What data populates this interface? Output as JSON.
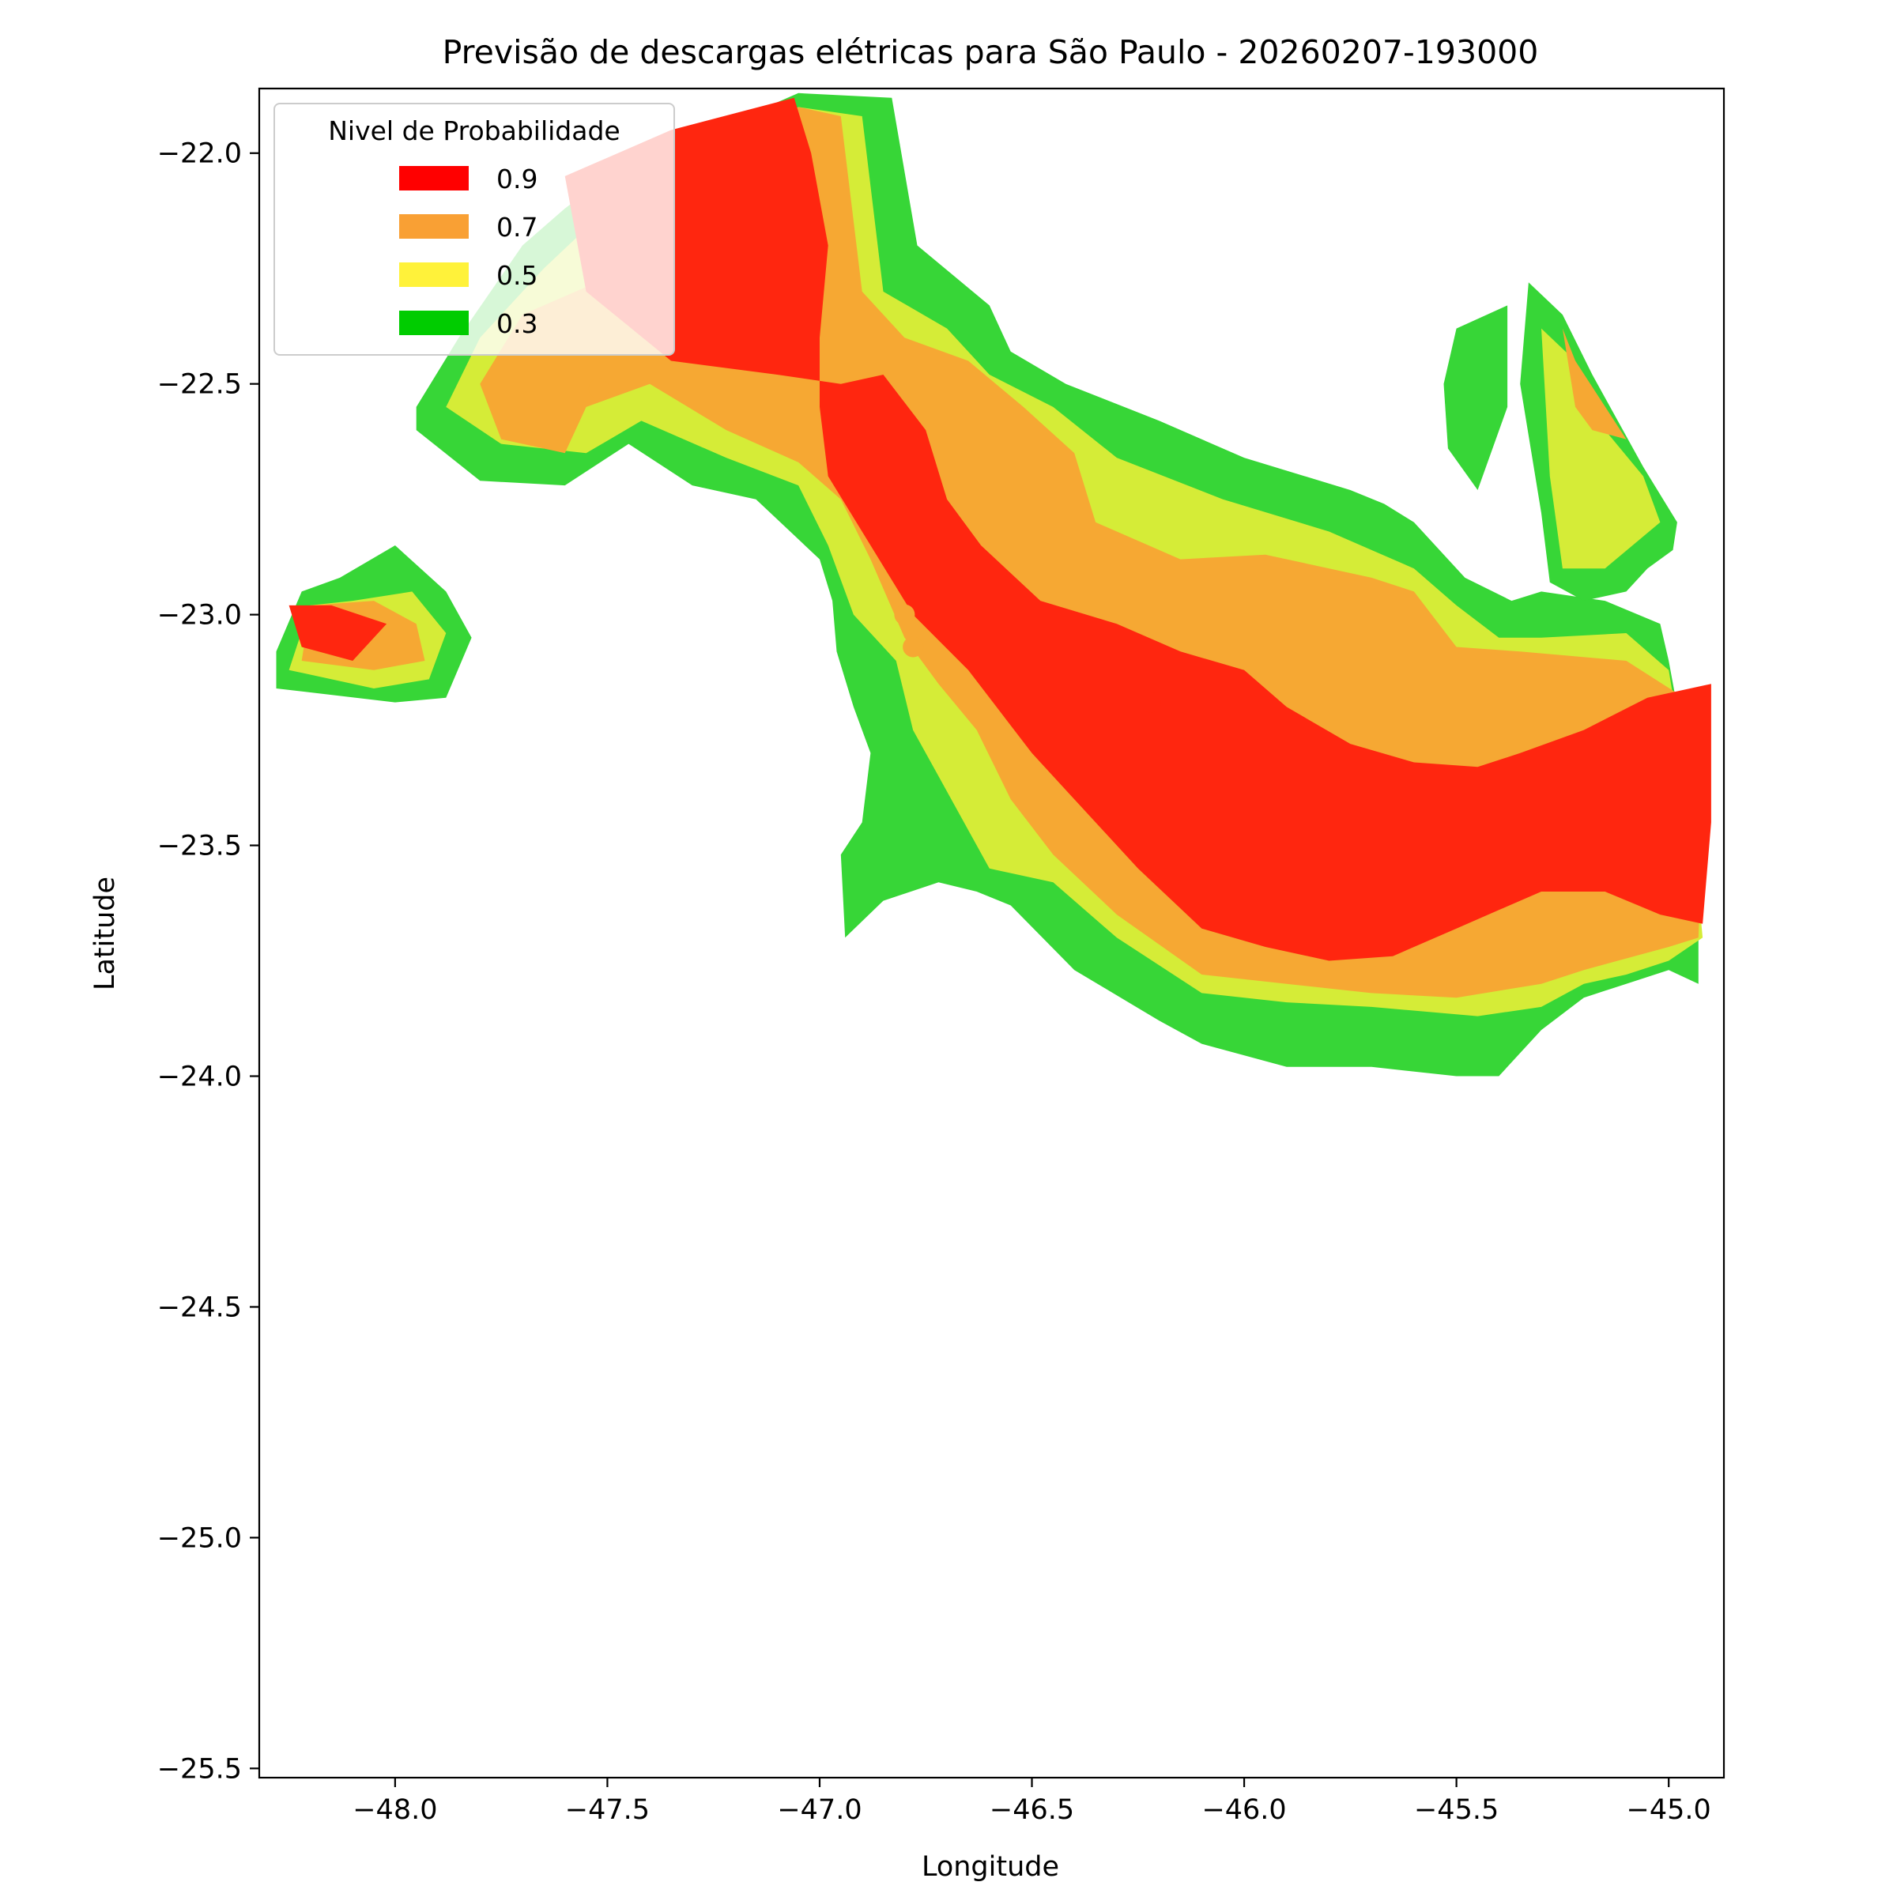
{
  "chart_data": {
    "type": "heatmap",
    "title": "Previsão de descargas elétricas para São Paulo - 20260207-193000",
    "xlabel": "Longitude",
    "ylabel": "Latitude",
    "xlim": [
      -48.32,
      -44.87
    ],
    "ylim": [
      -25.52,
      -21.86
    ],
    "xticks": [
      -48.0,
      -47.5,
      -47.0,
      -46.5,
      -46.0,
      -45.5,
      -45.0
    ],
    "yticks": [
      -22.0,
      -22.5,
      -23.0,
      -23.5,
      -24.0,
      -24.5,
      -25.0,
      -25.5
    ],
    "xtick_labels": [
      "−48.0",
      "−47.5",
      "−47.0",
      "−46.5",
      "−46.0",
      "−45.5",
      "−45.0"
    ],
    "ytick_labels": [
      "−22.0",
      "−22.5",
      "−23.0",
      "−23.5",
      "−24.0",
      "−24.5",
      "−25.0",
      "−25.5"
    ],
    "grid": false,
    "legend": {
      "title": "Nivel de Probabilidade",
      "placement": "top-left",
      "entries": [
        {
          "label": "0.9",
          "color": "#ff0000"
        },
        {
          "label": "0.7",
          "color": "#f9a034"
        },
        {
          "label": "0.5",
          "color": "#fff23a"
        },
        {
          "label": "0.3",
          "color": "#00cc00"
        }
      ]
    },
    "fill_colors": {
      "0.9": "#ff260f",
      "0.7": "#f6a833",
      "0.5": "#d5ec37",
      "0.3": "#37d637"
    },
    "regions": [
      {
        "level": 0.3,
        "polygons": [
          [
            [
              -47.5,
              -22.05
            ],
            [
              -47.05,
              -21.87
            ],
            [
              -46.83,
              -21.88
            ],
            [
              -46.77,
              -22.2
            ],
            [
              -46.6,
              -22.33
            ],
            [
              -46.55,
              -22.43
            ],
            [
              -46.42,
              -22.5
            ],
            [
              -46.2,
              -22.58
            ],
            [
              -46.0,
              -22.66
            ],
            [
              -45.75,
              -22.73
            ],
            [
              -45.67,
              -22.76
            ],
            [
              -45.6,
              -22.8
            ],
            [
              -45.48,
              -22.92
            ],
            [
              -45.37,
              -22.97
            ],
            [
              -45.3,
              -22.95
            ],
            [
              -45.15,
              -22.97
            ],
            [
              -45.02,
              -23.02
            ],
            [
              -45.0,
              -23.1
            ],
            [
              -44.96,
              -23.3
            ],
            [
              -44.92,
              -23.5
            ],
            [
              -44.93,
              -23.65
            ],
            [
              -44.93,
              -23.8
            ],
            [
              -45.0,
              -23.77
            ],
            [
              -45.1,
              -23.8
            ],
            [
              -45.2,
              -23.83
            ],
            [
              -45.3,
              -23.9
            ],
            [
              -45.4,
              -24.0
            ],
            [
              -45.5,
              -24.0
            ],
            [
              -45.7,
              -23.98
            ],
            [
              -45.9,
              -23.98
            ],
            [
              -46.1,
              -23.93
            ],
            [
              -46.2,
              -23.88
            ],
            [
              -46.4,
              -23.77
            ],
            [
              -46.55,
              -23.63
            ],
            [
              -46.63,
              -23.6
            ],
            [
              -46.72,
              -23.58
            ],
            [
              -46.85,
              -23.62
            ],
            [
              -46.94,
              -23.7
            ],
            [
              -46.95,
              -23.52
            ],
            [
              -46.9,
              -23.45
            ],
            [
              -46.88,
              -23.3
            ],
            [
              -46.92,
              -23.2
            ],
            [
              -46.96,
              -23.08
            ],
            [
              -46.97,
              -22.97
            ],
            [
              -47.0,
              -22.88
            ],
            [
              -47.15,
              -22.75
            ],
            [
              -47.3,
              -22.72
            ],
            [
              -47.45,
              -22.63
            ],
            [
              -47.6,
              -22.72
            ],
            [
              -47.8,
              -22.71
            ],
            [
              -47.95,
              -22.6
            ],
            [
              -47.95,
              -22.55
            ],
            [
              -47.85,
              -22.4
            ],
            [
              -47.7,
              -22.2
            ],
            [
              -47.6,
              -22.12
            ]
          ],
          [
            [
              -48.13,
              -22.92
            ],
            [
              -48.0,
              -22.85
            ],
            [
              -47.88,
              -22.95
            ],
            [
              -47.82,
              -23.05
            ],
            [
              -47.88,
              -23.18
            ],
            [
              -48.0,
              -23.19
            ],
            [
              -48.28,
              -23.16
            ],
            [
              -48.28,
              -23.08
            ],
            [
              -48.22,
              -22.95
            ]
          ],
          [
            [
              -45.5,
              -22.38
            ],
            [
              -45.38,
              -22.33
            ],
            [
              -45.38,
              -22.55
            ],
            [
              -45.45,
              -22.73
            ],
            [
              -45.52,
              -22.64
            ],
            [
              -45.53,
              -22.5
            ]
          ],
          [
            [
              -45.33,
              -22.28
            ],
            [
              -45.25,
              -22.35
            ],
            [
              -45.18,
              -22.48
            ],
            [
              -45.06,
              -22.68
            ],
            [
              -44.98,
              -22.8
            ],
            [
              -44.99,
              -22.86
            ],
            [
              -45.05,
              -22.9
            ],
            [
              -45.1,
              -22.95
            ],
            [
              -45.2,
              -22.97
            ],
            [
              -45.28,
              -22.93
            ],
            [
              -45.3,
              -22.78
            ],
            [
              -45.35,
              -22.5
            ]
          ]
        ]
      },
      {
        "level": 0.5,
        "polygons": [
          [
            [
              -47.4,
              -22.05
            ],
            [
              -47.05,
              -21.9
            ],
            [
              -46.9,
              -21.92
            ],
            [
              -46.85,
              -22.3
            ],
            [
              -46.7,
              -22.38
            ],
            [
              -46.6,
              -22.48
            ],
            [
              -46.45,
              -22.55
            ],
            [
              -46.3,
              -22.66
            ],
            [
              -46.05,
              -22.75
            ],
            [
              -45.8,
              -22.82
            ],
            [
              -45.7,
              -22.86
            ],
            [
              -45.6,
              -22.9
            ],
            [
              -45.5,
              -22.98
            ],
            [
              -45.4,
              -23.05
            ],
            [
              -45.3,
              -23.05
            ],
            [
              -45.1,
              -23.04
            ],
            [
              -45.0,
              -23.12
            ],
            [
              -44.95,
              -23.4
            ],
            [
              -44.92,
              -23.7
            ],
            [
              -45.0,
              -23.75
            ],
            [
              -45.1,
              -23.78
            ],
            [
              -45.2,
              -23.8
            ],
            [
              -45.3,
              -23.85
            ],
            [
              -45.45,
              -23.87
            ],
            [
              -45.7,
              -23.85
            ],
            [
              -45.9,
              -23.84
            ],
            [
              -46.1,
              -23.82
            ],
            [
              -46.3,
              -23.7
            ],
            [
              -46.45,
              -23.58
            ],
            [
              -46.6,
              -23.55
            ],
            [
              -46.72,
              -23.35
            ],
            [
              -46.78,
              -23.25
            ],
            [
              -46.82,
              -23.1
            ],
            [
              -46.92,
              -23.0
            ],
            [
              -46.98,
              -22.85
            ],
            [
              -47.05,
              -22.72
            ],
            [
              -47.22,
              -22.66
            ],
            [
              -47.42,
              -22.58
            ],
            [
              -47.55,
              -22.65
            ],
            [
              -47.75,
              -22.63
            ],
            [
              -47.88,
              -22.55
            ],
            [
              -47.8,
              -22.4
            ],
            [
              -47.65,
              -22.25
            ],
            [
              -47.5,
              -22.12
            ]
          ],
          [
            [
              -48.1,
              -22.97
            ],
            [
              -47.96,
              -22.95
            ],
            [
              -47.88,
              -23.04
            ],
            [
              -47.92,
              -23.14
            ],
            [
              -48.05,
              -23.16
            ],
            [
              -48.25,
              -23.12
            ],
            [
              -48.2,
              -22.98
            ]
          ],
          [
            [
              -45.3,
              -22.38
            ],
            [
              -45.22,
              -22.45
            ],
            [
              -45.15,
              -22.6
            ],
            [
              -45.06,
              -22.7
            ],
            [
              -45.02,
              -22.8
            ],
            [
              -45.15,
              -22.9
            ],
            [
              -45.25,
              -22.9
            ],
            [
              -45.28,
              -22.7
            ]
          ]
        ]
      },
      {
        "level": 0.7,
        "polygons": [
          [
            [
              -47.05,
              -21.9
            ],
            [
              -46.95,
              -21.92
            ],
            [
              -46.9,
              -22.3
            ],
            [
              -46.8,
              -22.4
            ],
            [
              -46.65,
              -22.45
            ],
            [
              -46.52,
              -22.55
            ],
            [
              -46.4,
              -22.65
            ],
            [
              -46.35,
              -22.8
            ],
            [
              -46.15,
              -22.88
            ],
            [
              -45.95,
              -22.87
            ],
            [
              -45.7,
              -22.92
            ],
            [
              -45.6,
              -22.95
            ],
            [
              -45.5,
              -23.07
            ],
            [
              -45.35,
              -23.08
            ],
            [
              -45.1,
              -23.1
            ],
            [
              -44.93,
              -23.2
            ],
            [
              -44.92,
              -23.45
            ],
            [
              -44.93,
              -23.7
            ],
            [
              -45.0,
              -23.72
            ],
            [
              -45.2,
              -23.77
            ],
            [
              -45.3,
              -23.8
            ],
            [
              -45.5,
              -23.83
            ],
            [
              -45.7,
              -23.82
            ],
            [
              -45.9,
              -23.8
            ],
            [
              -46.1,
              -23.78
            ],
            [
              -46.3,
              -23.65
            ],
            [
              -46.45,
              -23.52
            ],
            [
              -46.55,
              -23.4
            ],
            [
              -46.63,
              -23.25
            ],
            [
              -46.72,
              -23.15
            ],
            [
              -46.8,
              -23.05
            ],
            [
              -46.88,
              -22.88
            ],
            [
              -46.95,
              -22.75
            ],
            [
              -47.05,
              -22.67
            ],
            [
              -47.22,
              -22.6
            ],
            [
              -47.4,
              -22.5
            ],
            [
              -47.55,
              -22.55
            ],
            [
              -47.6,
              -22.65
            ],
            [
              -47.75,
              -22.62
            ],
            [
              -47.8,
              -22.5
            ],
            [
              -47.7,
              -22.35
            ],
            [
              -47.45,
              -22.25
            ],
            [
              -47.3,
              -22.15
            ],
            [
              -47.15,
              -22.0
            ]
          ],
          [
            [
              -48.2,
              -22.98
            ],
            [
              -48.05,
              -22.97
            ],
            [
              -47.95,
              -23.02
            ],
            [
              -47.93,
              -23.1
            ],
            [
              -48.05,
              -23.12
            ],
            [
              -48.22,
              -23.1
            ]
          ],
          [
            [
              -45.25,
              -22.38
            ],
            [
              -45.22,
              -22.45
            ],
            [
              -45.1,
              -22.62
            ],
            [
              -45.18,
              -22.6
            ],
            [
              -45.22,
              -22.55
            ]
          ]
        ]
      },
      {
        "level": 0.9,
        "polygons": [
          [
            [
              -47.06,
              -21.88
            ],
            [
              -47.35,
              -21.95
            ],
            [
              -47.6,
              -22.05
            ],
            [
              -47.55,
              -22.3
            ],
            [
              -47.35,
              -22.45
            ],
            [
              -47.1,
              -22.48
            ],
            [
              -46.95,
              -22.5
            ],
            [
              -46.85,
              -22.48
            ],
            [
              -46.75,
              -22.6
            ],
            [
              -46.7,
              -22.75
            ],
            [
              -46.62,
              -22.85
            ],
            [
              -46.48,
              -22.97
            ],
            [
              -46.3,
              -23.02
            ],
            [
              -46.15,
              -23.08
            ],
            [
              -46.0,
              -23.12
            ],
            [
              -45.9,
              -23.2
            ],
            [
              -45.75,
              -23.28
            ],
            [
              -45.6,
              -23.32
            ],
            [
              -45.45,
              -23.33
            ],
            [
              -45.35,
              -23.3
            ],
            [
              -45.2,
              -23.25
            ],
            [
              -45.05,
              -23.18
            ],
            [
              -44.9,
              -23.15
            ],
            [
              -44.9,
              -23.45
            ],
            [
              -44.92,
              -23.67
            ],
            [
              -45.02,
              -23.65
            ],
            [
              -45.15,
              -23.6
            ],
            [
              -45.3,
              -23.6
            ],
            [
              -45.4,
              -23.64
            ],
            [
              -45.5,
              -23.68
            ],
            [
              -45.65,
              -23.74
            ],
            [
              -45.8,
              -23.75
            ],
            [
              -45.95,
              -23.72
            ],
            [
              -46.1,
              -23.68
            ],
            [
              -46.25,
              -23.55
            ],
            [
              -46.4,
              -23.4
            ],
            [
              -46.5,
              -23.3
            ],
            [
              -46.65,
              -23.12
            ],
            [
              -46.78,
              -23.0
            ],
            [
              -46.88,
              -22.85
            ],
            [
              -46.98,
              -22.7
            ],
            [
              -47.0,
              -22.55
            ],
            [
              -47.0,
              -22.4
            ],
            [
              -46.98,
              -22.2
            ],
            [
              -47.02,
              -22.0
            ]
          ],
          [
            [
              -48.15,
              -22.98
            ],
            [
              -48.25,
              -22.98
            ],
            [
              -48.22,
              -23.07
            ],
            [
              -48.1,
              -23.1
            ],
            [
              -48.02,
              -23.02
            ]
          ]
        ]
      }
    ],
    "annotations": [],
    "points": [
      {
        "lon": -47.52,
        "lat": -22.51,
        "level": 0.7
      },
      {
        "lon": -46.8,
        "lat": -23.0,
        "level": 0.7
      },
      {
        "lon": -46.78,
        "lat": -23.07,
        "level": 0.7
      },
      {
        "lon": -46.22,
        "lat": -23.19,
        "level": 0.9
      }
    ]
  }
}
